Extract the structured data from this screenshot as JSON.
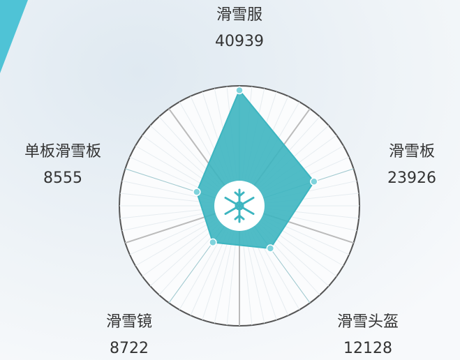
{
  "chart_data": {
    "type": "radar",
    "categories": [
      "滑雪服",
      "滑雪板",
      "滑雪头盔",
      "滑雪镜",
      "单板滑雪板"
    ],
    "values": [
      40939,
      23926,
      12128,
      8722,
      8555
    ],
    "color": "#3db5c0",
    "rlim": [
      0,
      43000
    ]
  }
}
